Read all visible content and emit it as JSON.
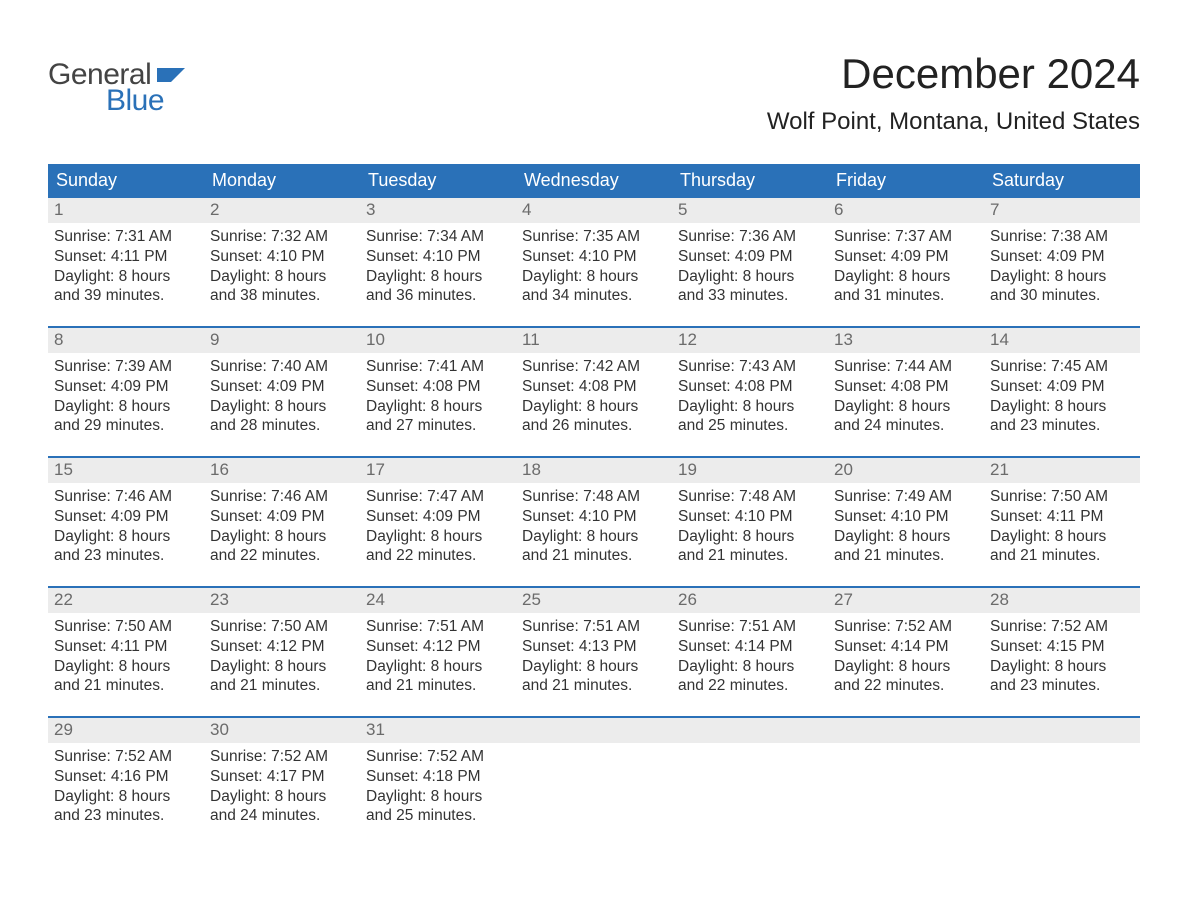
{
  "logo": {
    "word1": "General",
    "word2": "Blue",
    "flag_color": "#2a71b8"
  },
  "title": "December 2024",
  "location": "Wolf Point, Montana, United States",
  "colors": {
    "header_bg": "#2a71b8",
    "header_text": "#ffffff",
    "daynum_bg": "#ececec",
    "daynum_text": "#6b6b6b",
    "body_text": "#333333",
    "week_border": "#2a71b8",
    "page_bg": "#ffffff"
  },
  "weekdays": [
    "Sunday",
    "Monday",
    "Tuesday",
    "Wednesday",
    "Thursday",
    "Friday",
    "Saturday"
  ],
  "weeks": [
    [
      {
        "n": "1",
        "sunrise": "Sunrise: 7:31 AM",
        "sunset": "Sunset: 4:11 PM",
        "d1": "Daylight: 8 hours",
        "d2": "and 39 minutes."
      },
      {
        "n": "2",
        "sunrise": "Sunrise: 7:32 AM",
        "sunset": "Sunset: 4:10 PM",
        "d1": "Daylight: 8 hours",
        "d2": "and 38 minutes."
      },
      {
        "n": "3",
        "sunrise": "Sunrise: 7:34 AM",
        "sunset": "Sunset: 4:10 PM",
        "d1": "Daylight: 8 hours",
        "d2": "and 36 minutes."
      },
      {
        "n": "4",
        "sunrise": "Sunrise: 7:35 AM",
        "sunset": "Sunset: 4:10 PM",
        "d1": "Daylight: 8 hours",
        "d2": "and 34 minutes."
      },
      {
        "n": "5",
        "sunrise": "Sunrise: 7:36 AM",
        "sunset": "Sunset: 4:09 PM",
        "d1": "Daylight: 8 hours",
        "d2": "and 33 minutes."
      },
      {
        "n": "6",
        "sunrise": "Sunrise: 7:37 AM",
        "sunset": "Sunset: 4:09 PM",
        "d1": "Daylight: 8 hours",
        "d2": "and 31 minutes."
      },
      {
        "n": "7",
        "sunrise": "Sunrise: 7:38 AM",
        "sunset": "Sunset: 4:09 PM",
        "d1": "Daylight: 8 hours",
        "d2": "and 30 minutes."
      }
    ],
    [
      {
        "n": "8",
        "sunrise": "Sunrise: 7:39 AM",
        "sunset": "Sunset: 4:09 PM",
        "d1": "Daylight: 8 hours",
        "d2": "and 29 minutes."
      },
      {
        "n": "9",
        "sunrise": "Sunrise: 7:40 AM",
        "sunset": "Sunset: 4:09 PM",
        "d1": "Daylight: 8 hours",
        "d2": "and 28 minutes."
      },
      {
        "n": "10",
        "sunrise": "Sunrise: 7:41 AM",
        "sunset": "Sunset: 4:08 PM",
        "d1": "Daylight: 8 hours",
        "d2": "and 27 minutes."
      },
      {
        "n": "11",
        "sunrise": "Sunrise: 7:42 AM",
        "sunset": "Sunset: 4:08 PM",
        "d1": "Daylight: 8 hours",
        "d2": "and 26 minutes."
      },
      {
        "n": "12",
        "sunrise": "Sunrise: 7:43 AM",
        "sunset": "Sunset: 4:08 PM",
        "d1": "Daylight: 8 hours",
        "d2": "and 25 minutes."
      },
      {
        "n": "13",
        "sunrise": "Sunrise: 7:44 AM",
        "sunset": "Sunset: 4:08 PM",
        "d1": "Daylight: 8 hours",
        "d2": "and 24 minutes."
      },
      {
        "n": "14",
        "sunrise": "Sunrise: 7:45 AM",
        "sunset": "Sunset: 4:09 PM",
        "d1": "Daylight: 8 hours",
        "d2": "and 23 minutes."
      }
    ],
    [
      {
        "n": "15",
        "sunrise": "Sunrise: 7:46 AM",
        "sunset": "Sunset: 4:09 PM",
        "d1": "Daylight: 8 hours",
        "d2": "and 23 minutes."
      },
      {
        "n": "16",
        "sunrise": "Sunrise: 7:46 AM",
        "sunset": "Sunset: 4:09 PM",
        "d1": "Daylight: 8 hours",
        "d2": "and 22 minutes."
      },
      {
        "n": "17",
        "sunrise": "Sunrise: 7:47 AM",
        "sunset": "Sunset: 4:09 PM",
        "d1": "Daylight: 8 hours",
        "d2": "and 22 minutes."
      },
      {
        "n": "18",
        "sunrise": "Sunrise: 7:48 AM",
        "sunset": "Sunset: 4:10 PM",
        "d1": "Daylight: 8 hours",
        "d2": "and 21 minutes."
      },
      {
        "n": "19",
        "sunrise": "Sunrise: 7:48 AM",
        "sunset": "Sunset: 4:10 PM",
        "d1": "Daylight: 8 hours",
        "d2": "and 21 minutes."
      },
      {
        "n": "20",
        "sunrise": "Sunrise: 7:49 AM",
        "sunset": "Sunset: 4:10 PM",
        "d1": "Daylight: 8 hours",
        "d2": "and 21 minutes."
      },
      {
        "n": "21",
        "sunrise": "Sunrise: 7:50 AM",
        "sunset": "Sunset: 4:11 PM",
        "d1": "Daylight: 8 hours",
        "d2": "and 21 minutes."
      }
    ],
    [
      {
        "n": "22",
        "sunrise": "Sunrise: 7:50 AM",
        "sunset": "Sunset: 4:11 PM",
        "d1": "Daylight: 8 hours",
        "d2": "and 21 minutes."
      },
      {
        "n": "23",
        "sunrise": "Sunrise: 7:50 AM",
        "sunset": "Sunset: 4:12 PM",
        "d1": "Daylight: 8 hours",
        "d2": "and 21 minutes."
      },
      {
        "n": "24",
        "sunrise": "Sunrise: 7:51 AM",
        "sunset": "Sunset: 4:12 PM",
        "d1": "Daylight: 8 hours",
        "d2": "and 21 minutes."
      },
      {
        "n": "25",
        "sunrise": "Sunrise: 7:51 AM",
        "sunset": "Sunset: 4:13 PM",
        "d1": "Daylight: 8 hours",
        "d2": "and 21 minutes."
      },
      {
        "n": "26",
        "sunrise": "Sunrise: 7:51 AM",
        "sunset": "Sunset: 4:14 PM",
        "d1": "Daylight: 8 hours",
        "d2": "and 22 minutes."
      },
      {
        "n": "27",
        "sunrise": "Sunrise: 7:52 AM",
        "sunset": "Sunset: 4:14 PM",
        "d1": "Daylight: 8 hours",
        "d2": "and 22 minutes."
      },
      {
        "n": "28",
        "sunrise": "Sunrise: 7:52 AM",
        "sunset": "Sunset: 4:15 PM",
        "d1": "Daylight: 8 hours",
        "d2": "and 23 minutes."
      }
    ],
    [
      {
        "n": "29",
        "sunrise": "Sunrise: 7:52 AM",
        "sunset": "Sunset: 4:16 PM",
        "d1": "Daylight: 8 hours",
        "d2": "and 23 minutes."
      },
      {
        "n": "30",
        "sunrise": "Sunrise: 7:52 AM",
        "sunset": "Sunset: 4:17 PM",
        "d1": "Daylight: 8 hours",
        "d2": "and 24 minutes."
      },
      {
        "n": "31",
        "sunrise": "Sunrise: 7:52 AM",
        "sunset": "Sunset: 4:18 PM",
        "d1": "Daylight: 8 hours",
        "d2": "and 25 minutes."
      },
      {
        "empty": true
      },
      {
        "empty": true
      },
      {
        "empty": true
      },
      {
        "empty": true
      }
    ]
  ]
}
